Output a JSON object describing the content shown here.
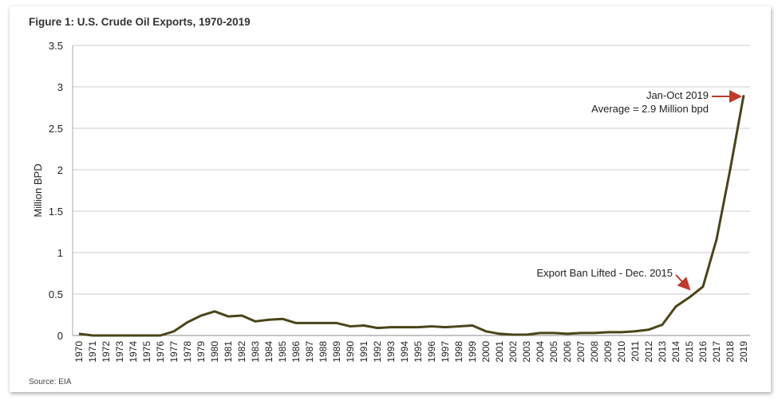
{
  "chart_data": {
    "type": "line",
    "title": "Figure 1: U.S. Crude Oil Exports, 1970-2019",
    "ylabel": "Million BPD",
    "xlabel": "",
    "ylim": [
      0,
      3.5
    ],
    "yticks": [
      "0",
      "0.5",
      "1",
      "1.5",
      "2",
      "2.5",
      "3",
      "3.5"
    ],
    "grid": true,
    "x": [
      1970,
      1971,
      1972,
      1973,
      1974,
      1975,
      1976,
      1977,
      1978,
      1979,
      1980,
      1981,
      1982,
      1983,
      1984,
      1985,
      1986,
      1987,
      1988,
      1989,
      1990,
      1991,
      1992,
      1993,
      1994,
      1995,
      1996,
      1997,
      1998,
      1999,
      2000,
      2001,
      2002,
      2003,
      2004,
      2005,
      2006,
      2007,
      2008,
      2009,
      2010,
      2011,
      2012,
      2013,
      2014,
      2015,
      2016,
      2017,
      2018,
      2019
    ],
    "series": [
      {
        "name": "U.S. Crude Oil Exports",
        "color": "#4a4518",
        "values": [
          0.02,
          0,
          0,
          0,
          0,
          0,
          0,
          0.05,
          0.16,
          0.24,
          0.29,
          0.23,
          0.24,
          0.17,
          0.19,
          0.2,
          0.15,
          0.15,
          0.15,
          0.15,
          0.11,
          0.12,
          0.09,
          0.1,
          0.1,
          0.1,
          0.11,
          0.1,
          0.11,
          0.12,
          0.05,
          0.02,
          0.01,
          0.01,
          0.03,
          0.03,
          0.02,
          0.03,
          0.03,
          0.04,
          0.04,
          0.05,
          0.07,
          0.13,
          0.35,
          0.46,
          0.59,
          1.16,
          2.0,
          2.9
        ]
      }
    ],
    "annotations": [
      {
        "lines": [
          "Jan-Oct 2019",
          "Average = 2.9 Million bpd"
        ],
        "x": 2019,
        "y": 2.9
      },
      {
        "lines": [
          "Export Ban Lifted - Dec. 2015"
        ],
        "x": 2015.5,
        "y": 0.52
      }
    ],
    "source": "Source: EIA"
  }
}
